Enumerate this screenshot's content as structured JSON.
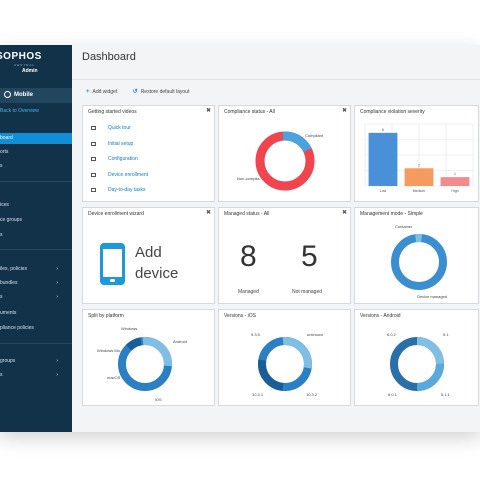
{
  "sidebar": {
    "logo_text": "SOPHOS",
    "logo_sub": "CENTRAL",
    "logo_admin": "Admin",
    "section_title": "Mobile",
    "back_link": "Back to Overview",
    "items": [
      {
        "label": "board",
        "active": true
      },
      {
        "label": "orts"
      },
      {
        "label": "s"
      },
      {
        "label": "ices"
      },
      {
        "label": "ce groups"
      },
      {
        "label": "s"
      },
      {
        "label": "iles, policies",
        "chevron": true
      },
      {
        "label": "bundles",
        "chevron": true
      },
      {
        "label": "s",
        "chevron": true
      },
      {
        "label": "uments"
      },
      {
        "label": "pliance policies"
      },
      {
        "label": "groups",
        "chevron": true
      },
      {
        "label": "s",
        "chevron": true
      }
    ]
  },
  "header": {
    "title": "Dashboard"
  },
  "toolbar": {
    "add_widget": "Add widget",
    "restore_layout": "Restore default layout"
  },
  "widgets": {
    "getting_started": {
      "title": "Getting started videos",
      "items": [
        "Quick tour",
        "Initial setup",
        "Configuration",
        "Device enrollment",
        "Day-to-day tasks"
      ]
    },
    "compliance_status": {
      "title": "Compliance status - All",
      "labels": [
        "Compliant",
        "Non-complia..."
      ]
    },
    "violation_severity": {
      "title": "Compliance violation severity",
      "chart_data": {
        "type": "bar",
        "categories": [
          "Low",
          "Medium",
          "High"
        ],
        "values": [
          6,
          2,
          1
        ],
        "ylim": [
          0,
          7
        ],
        "colors": [
          "#4a90d9",
          "#f59b5f",
          "#f28b8b"
        ]
      }
    },
    "enrollment_wizard": {
      "title": "Device enrollment wizard",
      "line1": "Add",
      "line2": "device"
    },
    "managed_status": {
      "title": "Managed status - All",
      "managed_value": "8",
      "managed_label": "Managed",
      "not_managed_value": "5",
      "not_managed_label": "Not managed"
    },
    "management_mode": {
      "title": "Management mode - Simple",
      "labels": [
        "Container",
        "Device managed"
      ]
    },
    "split_platform": {
      "title": "Split by platform",
      "labels": [
        "Windows",
        "Android",
        "Windows Mo...",
        "macOS",
        "iOS"
      ]
    },
    "versions_ios": {
      "title": "Versions - iOS",
      "labels": [
        "9.3.5",
        "unknown",
        "10.3.1",
        "10.3.2"
      ]
    },
    "versions_android": {
      "title": "Versions - Android",
      "labels": [
        "6.0.2",
        "5.1",
        "6.0.1",
        "5.1.1"
      ]
    }
  },
  "colors": {
    "sidebar_bg": "#12324a",
    "accent": "#0e8fd6",
    "donut_blue": "#2b7fc3",
    "donut_light": "#7fbfe6",
    "donut_red": "#f0444f"
  },
  "close_glyph": "✖"
}
